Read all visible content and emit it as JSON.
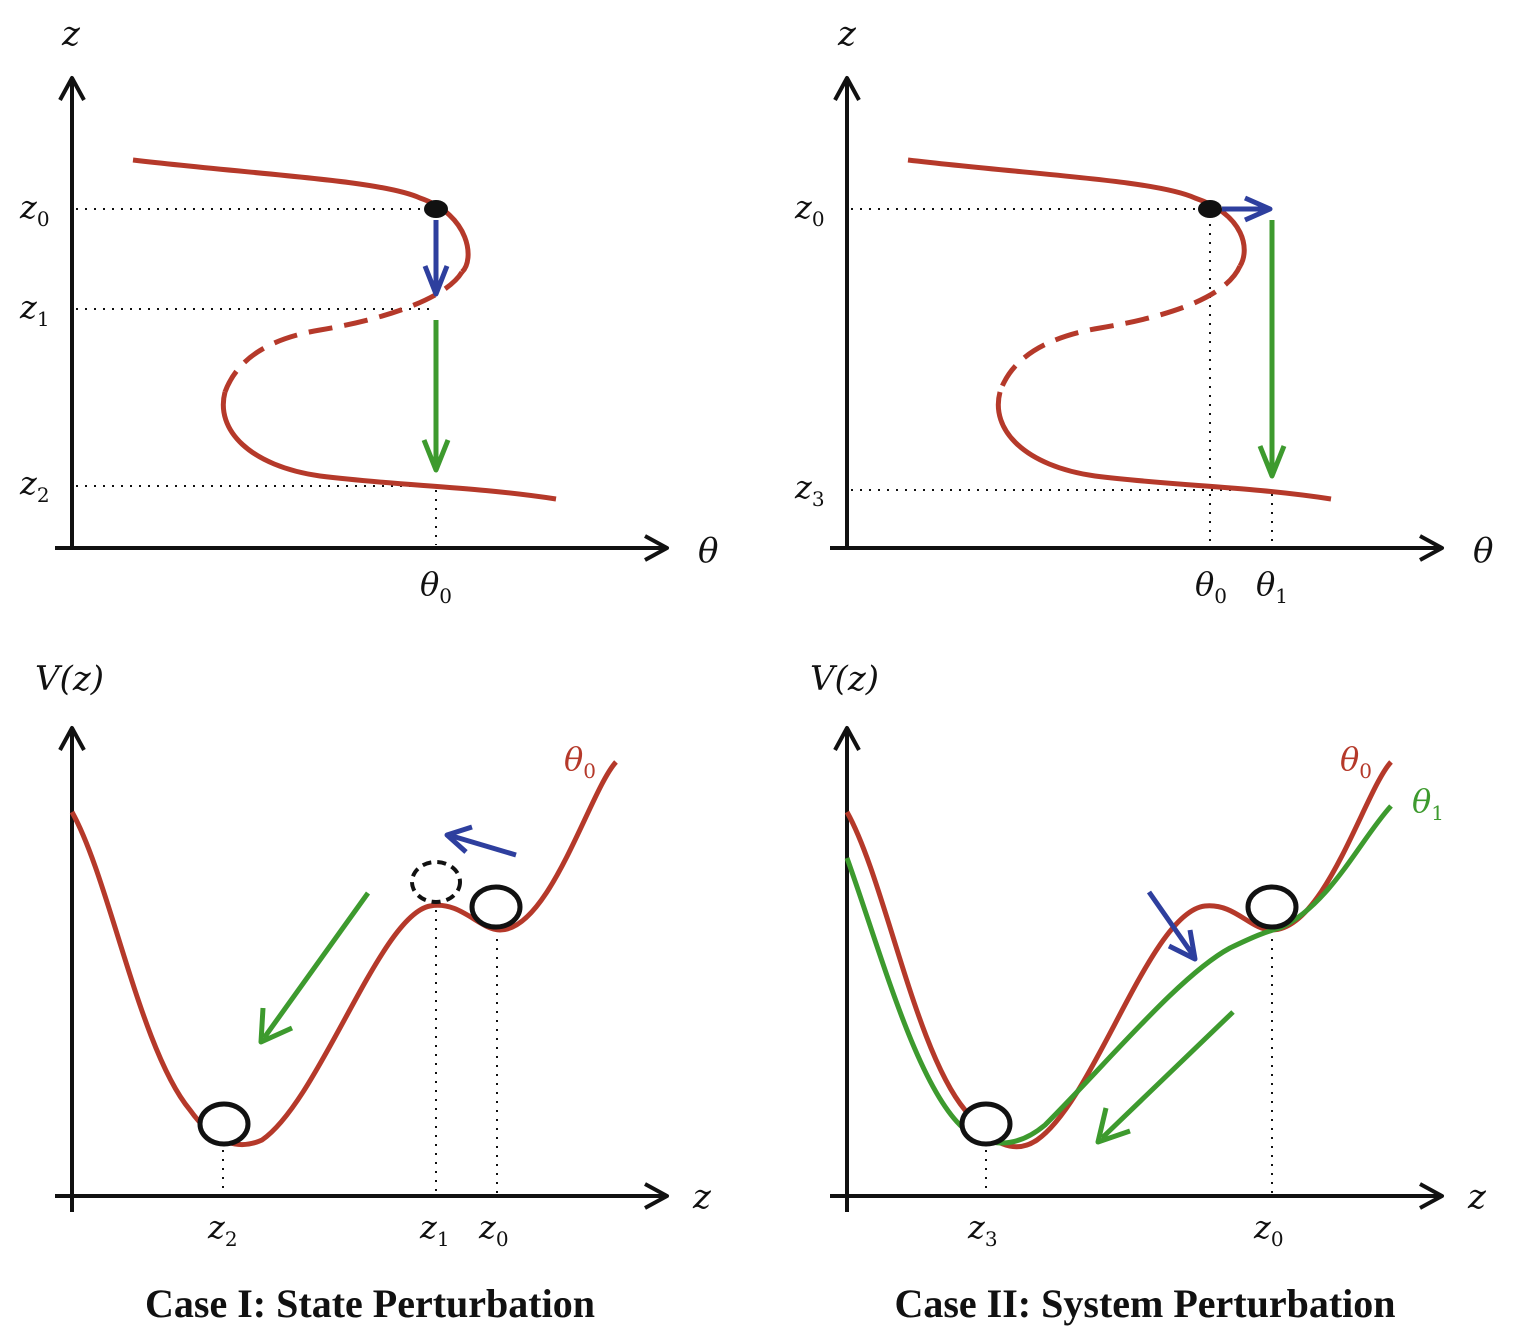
{
  "colors": {
    "stable_branch": "#b5392a",
    "theta1_curve": "#3d9a2e",
    "state_arrow": "#2e3f9e",
    "transition_arrow": "#3d9a2e",
    "axis": "#111111"
  },
  "panels": {
    "top_left": {
      "y_axis": "z",
      "x_axis": "θ",
      "z0": {
        "base": "z",
        "sub": "0"
      },
      "z1": {
        "base": "z",
        "sub": "1"
      },
      "z2": {
        "base": "z",
        "sub": "2"
      },
      "theta0": {
        "base": "θ",
        "sub": "0"
      }
    },
    "top_right": {
      "y_axis": "z",
      "x_axis": "θ",
      "z0": {
        "base": "z",
        "sub": "0"
      },
      "z3": {
        "base": "z",
        "sub": "3"
      },
      "theta0": {
        "base": "θ",
        "sub": "0"
      },
      "theta1": {
        "base": "θ",
        "sub": "1"
      }
    },
    "bottom_left": {
      "y_axis": "V(z)",
      "x_axis": "z",
      "z2": {
        "base": "z",
        "sub": "2"
      },
      "z1": {
        "base": "z",
        "sub": "1"
      },
      "z0": {
        "base": "z",
        "sub": "0"
      },
      "curve_label": {
        "base": "θ",
        "sub": "0"
      }
    },
    "bottom_right": {
      "y_axis": "V(z)",
      "x_axis": "z",
      "z3": {
        "base": "z",
        "sub": "3"
      },
      "z0": {
        "base": "z",
        "sub": "0"
      },
      "curve_label_red": {
        "base": "θ",
        "sub": "0"
      },
      "curve_label_green": {
        "base": "θ",
        "sub": "1"
      }
    }
  },
  "captions": {
    "case1": "Case I: State Perturbation",
    "case2": "Case II: System Perturbation"
  }
}
